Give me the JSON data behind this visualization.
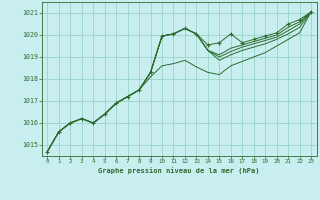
{
  "bg_color": "#c8eef0",
  "grid_color": "#98d4c8",
  "line_color": "#2d6b2d",
  "marker_color": "#2d6b2d",
  "title": "Graphe pression niveau de la mer (hPa)",
  "xlim": [
    -0.5,
    23.5
  ],
  "ylim": [
    1014.5,
    1021.5
  ],
  "yticks": [
    1015,
    1016,
    1017,
    1018,
    1019,
    1020,
    1021
  ],
  "xticks": [
    0,
    1,
    2,
    3,
    4,
    5,
    6,
    7,
    8,
    9,
    10,
    11,
    12,
    13,
    14,
    15,
    16,
    17,
    18,
    19,
    20,
    21,
    22,
    23
  ],
  "series1": [
    1014.7,
    1015.6,
    1016.0,
    1016.2,
    1016.0,
    1016.4,
    1016.9,
    1017.2,
    1017.5,
    1018.3,
    1019.95,
    1020.05,
    1020.3,
    1020.05,
    1019.55,
    1019.65,
    1020.05,
    1019.65,
    1019.8,
    1019.95,
    1020.1,
    1020.5,
    1020.7,
    1021.05
  ],
  "series2": [
    1014.7,
    1015.6,
    1016.0,
    1016.2,
    1016.0,
    1016.4,
    1016.9,
    1017.2,
    1017.5,
    1018.3,
    1019.95,
    1020.05,
    1020.3,
    1020.05,
    1019.3,
    1019.1,
    1019.4,
    1019.55,
    1019.7,
    1019.85,
    1020.0,
    1020.35,
    1020.6,
    1021.05
  ],
  "series3": [
    1014.7,
    1015.6,
    1016.0,
    1016.2,
    1016.0,
    1016.4,
    1016.9,
    1017.2,
    1017.5,
    1018.3,
    1019.95,
    1020.05,
    1020.3,
    1020.05,
    1019.3,
    1019.0,
    1019.25,
    1019.45,
    1019.6,
    1019.75,
    1019.9,
    1020.2,
    1020.5,
    1021.05
  ],
  "series4": [
    1014.7,
    1015.6,
    1016.0,
    1016.2,
    1016.0,
    1016.4,
    1016.9,
    1017.2,
    1017.5,
    1018.3,
    1019.95,
    1020.05,
    1020.3,
    1020.05,
    1019.3,
    1018.85,
    1019.1,
    1019.3,
    1019.45,
    1019.6,
    1019.8,
    1020.05,
    1020.35,
    1021.05
  ],
  "series5": [
    1014.7,
    1015.6,
    1016.0,
    1016.2,
    1016.0,
    1016.4,
    1016.9,
    1017.2,
    1017.5,
    1018.1,
    1018.6,
    1018.7,
    1018.85,
    1018.55,
    1018.3,
    1018.2,
    1018.6,
    1018.8,
    1019.0,
    1019.2,
    1019.5,
    1019.8,
    1020.1,
    1021.05
  ]
}
